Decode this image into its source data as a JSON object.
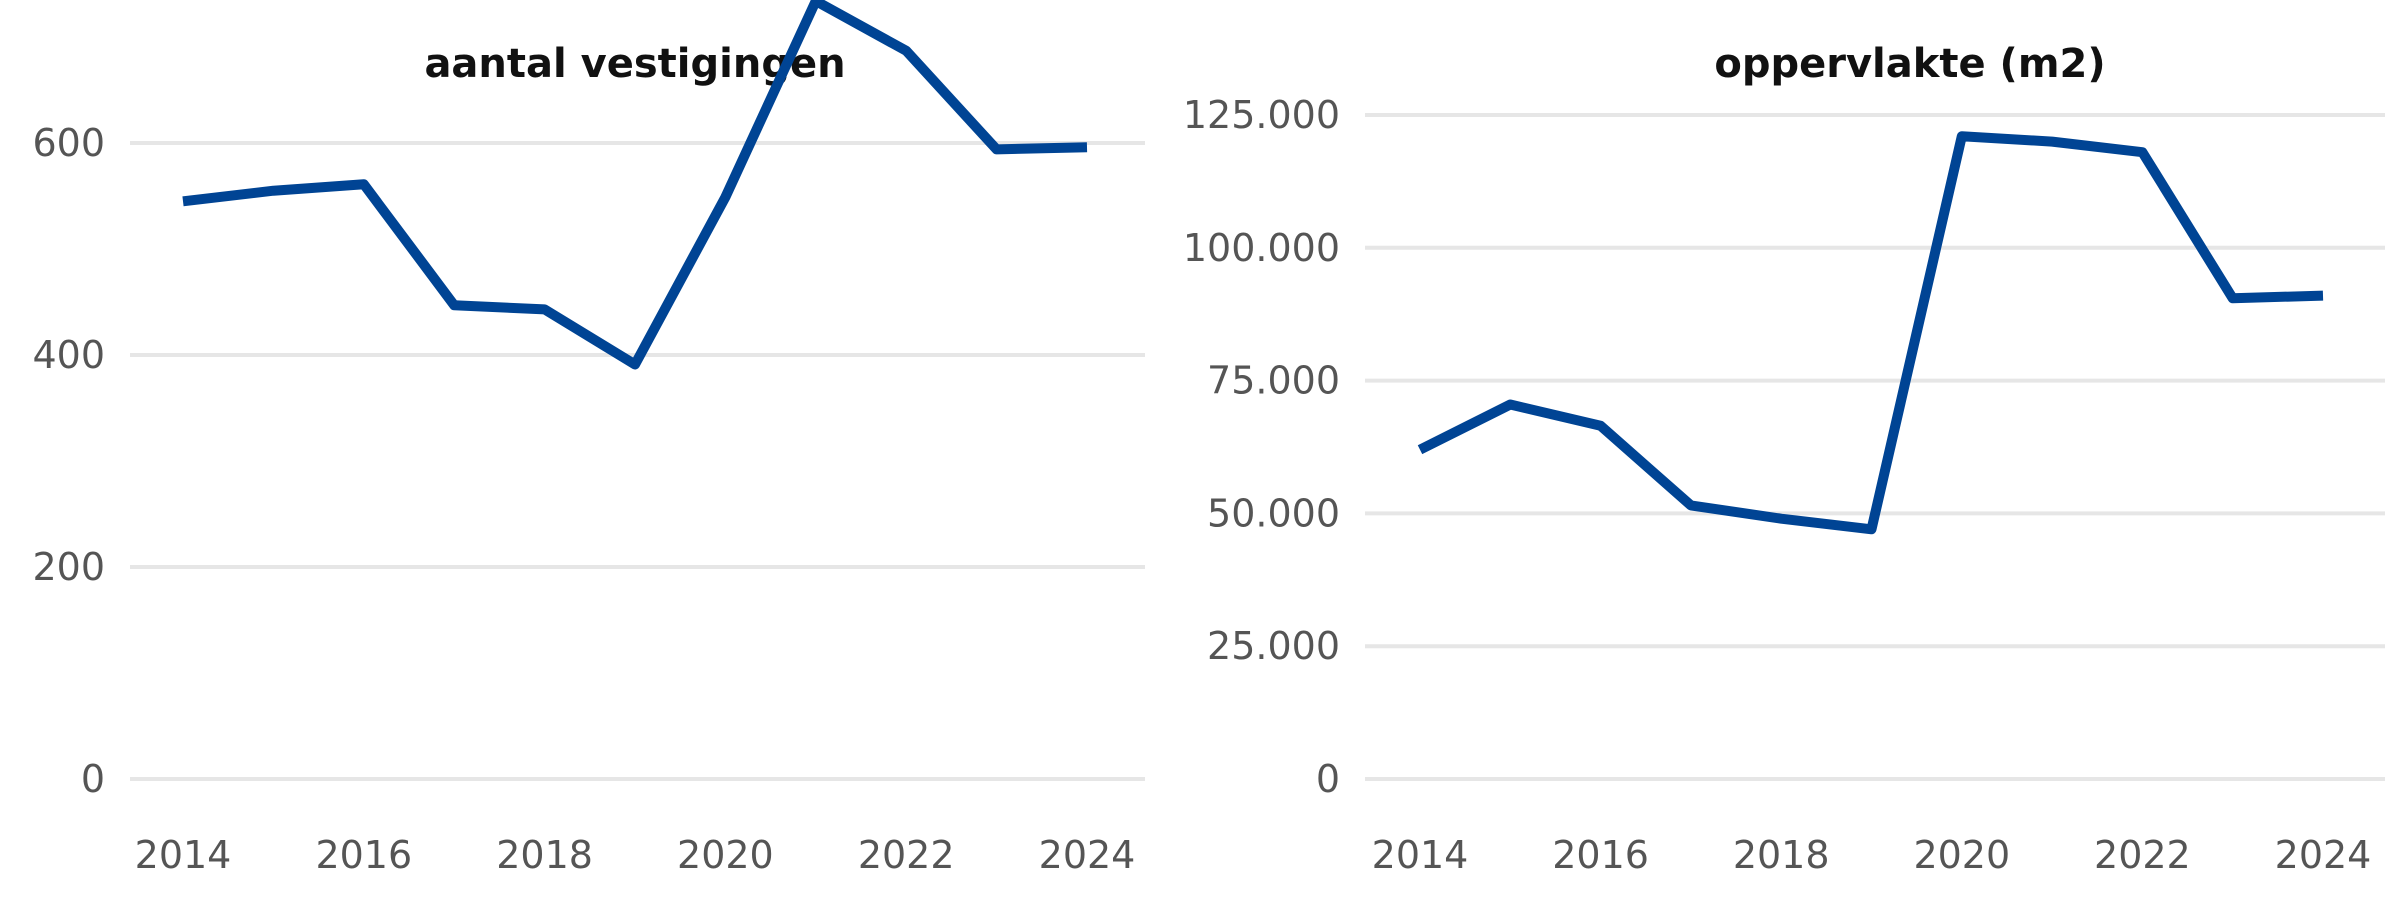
{
  "colors": {
    "series": "#004494",
    "grid": "#e6e6e6",
    "tick_text": "#555555",
    "title_text": "#111111"
  },
  "chart_data": [
    {
      "type": "line",
      "title": "aantal vestigingen",
      "xlabel": "",
      "ylabel": "",
      "x": [
        2014,
        2015,
        2016,
        2017,
        2018,
        2019,
        2020,
        2021,
        2022,
        2023,
        2024
      ],
      "series": [
        {
          "values": [
            545,
            555,
            561,
            447,
            443,
            391,
            549,
            734,
            687,
            594,
            596
          ]
        }
      ],
      "xlim": [
        2014,
        2024
      ],
      "ylim": [
        0,
        700
      ],
      "xticks": [
        2014,
        2016,
        2018,
        2020,
        2022,
        2024
      ],
      "xtick_labels": [
        "2014",
        "2016",
        "2018",
        "2020",
        "2022",
        "2024"
      ],
      "yticks": [
        0,
        200,
        400,
        600
      ],
      "ytick_labels": [
        "0",
        "200",
        "400",
        "600"
      ],
      "grid": true,
      "legend": "none"
    },
    {
      "type": "line",
      "title": "oppervlakte (m2)",
      "xlabel": "",
      "ylabel": "",
      "x": [
        2014,
        2015,
        2016,
        2017,
        2018,
        2019,
        2020,
        2021,
        2022,
        2023,
        2024
      ],
      "series": [
        {
          "values": [
            62000,
            70500,
            66500,
            51500,
            49000,
            47000,
            121000,
            120000,
            118000,
            90500,
            91000
          ]
        }
      ],
      "xlim": [
        2014,
        2024
      ],
      "ylim": [
        0,
        125000
      ],
      "xticks": [
        2014,
        2016,
        2018,
        2020,
        2022,
        2024
      ],
      "xtick_labels": [
        "2014",
        "2016",
        "2018",
        "2020",
        "2022",
        "2024"
      ],
      "yticks": [
        0,
        25000,
        50000,
        75000,
        100000,
        125000
      ],
      "ytick_labels": [
        "0",
        "25.000",
        "50.000",
        "75.000",
        "100.000",
        "125.000"
      ],
      "grid": true,
      "legend": "none"
    }
  ]
}
